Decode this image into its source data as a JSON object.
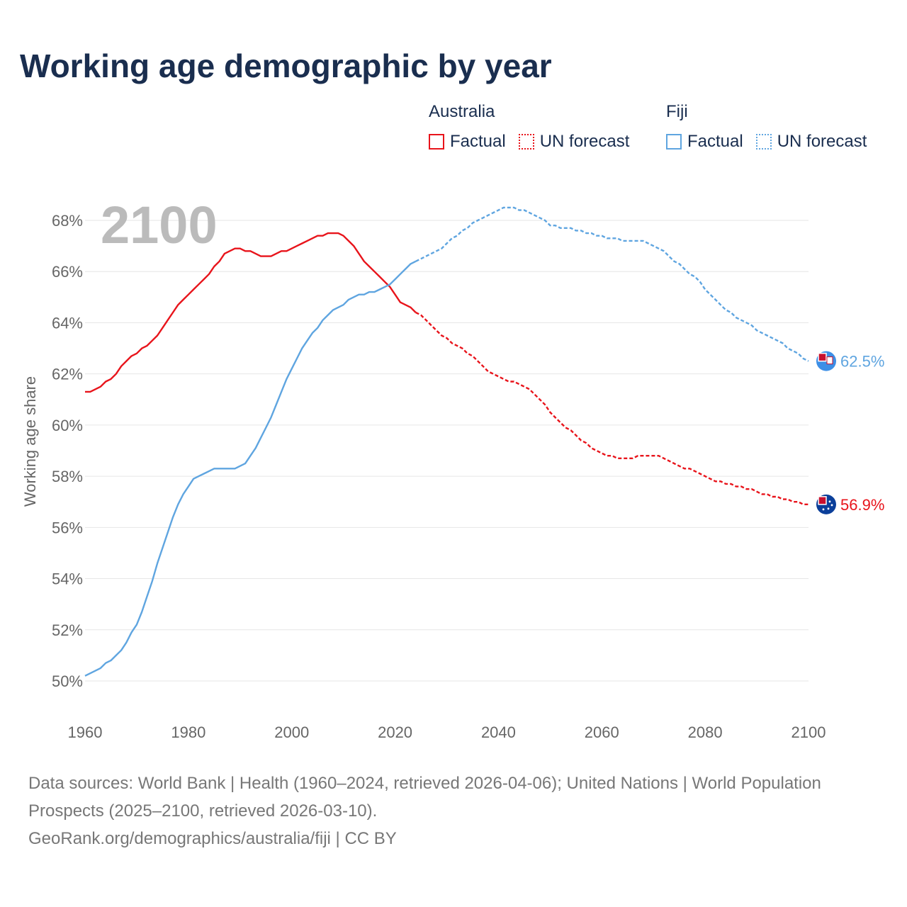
{
  "title": "Working age demographic by year",
  "legend": {
    "groups": [
      {
        "name": "Australia",
        "color": "#e8141b",
        "factual_label": "Factual",
        "forecast_label": "UN forecast"
      },
      {
        "name": "Fiji",
        "color": "#5fa5e0",
        "factual_label": "Factual",
        "forecast_label": "UN forecast"
      }
    ]
  },
  "footer": {
    "line1": "Data sources: World Bank | Health (1960–2024, retrieved 2026-04-06); United Nations | World Population Prospects (2025–2100, retrieved 2026-03-10).",
    "line2": "GeoRank.org/demographics/australia/fiji | CC BY"
  },
  "chart_data": {
    "type": "line",
    "year_label": "2100",
    "ylabel": "Working age share",
    "xlim": [
      1960,
      2100
    ],
    "ylim": [
      49,
      69
    ],
    "x_ticks": [
      1960,
      1980,
      2000,
      2020,
      2040,
      2060,
      2080,
      2100
    ],
    "x_tick_labels": [
      "1960",
      "1980",
      "2000",
      "2020",
      "2040",
      "2060",
      "2080",
      "2100"
    ],
    "y_ticks": [
      50,
      52,
      54,
      56,
      58,
      60,
      62,
      64,
      66,
      68
    ],
    "y_tick_labels": [
      "50%",
      "52%",
      "54%",
      "56%",
      "58%",
      "60%",
      "62%",
      "64%",
      "66%",
      "68%"
    ],
    "factual_end_year": 2024,
    "series": [
      {
        "name": "Australia",
        "color": "#e8141b",
        "end_label": "56.9%",
        "points": [
          [
            1960,
            61.3
          ],
          [
            1961,
            61.3
          ],
          [
            1962,
            61.4
          ],
          [
            1963,
            61.5
          ],
          [
            1964,
            61.7
          ],
          [
            1965,
            61.8
          ],
          [
            1966,
            62.0
          ],
          [
            1967,
            62.3
          ],
          [
            1968,
            62.5
          ],
          [
            1969,
            62.7
          ],
          [
            1970,
            62.8
          ],
          [
            1971,
            63.0
          ],
          [
            1972,
            63.1
          ],
          [
            1973,
            63.3
          ],
          [
            1974,
            63.5
          ],
          [
            1975,
            63.8
          ],
          [
            1976,
            64.1
          ],
          [
            1977,
            64.4
          ],
          [
            1978,
            64.7
          ],
          [
            1979,
            64.9
          ],
          [
            1980,
            65.1
          ],
          [
            1981,
            65.3
          ],
          [
            1982,
            65.5
          ],
          [
            1983,
            65.7
          ],
          [
            1984,
            65.9
          ],
          [
            1985,
            66.2
          ],
          [
            1986,
            66.4
          ],
          [
            1987,
            66.7
          ],
          [
            1988,
            66.8
          ],
          [
            1989,
            66.9
          ],
          [
            1990,
            66.9
          ],
          [
            1991,
            66.8
          ],
          [
            1992,
            66.8
          ],
          [
            1993,
            66.7
          ],
          [
            1994,
            66.6
          ],
          [
            1995,
            66.6
          ],
          [
            1996,
            66.6
          ],
          [
            1997,
            66.7
          ],
          [
            1998,
            66.8
          ],
          [
            1999,
            66.8
          ],
          [
            2000,
            66.9
          ],
          [
            2001,
            67.0
          ],
          [
            2002,
            67.1
          ],
          [
            2003,
            67.2
          ],
          [
            2004,
            67.3
          ],
          [
            2005,
            67.4
          ],
          [
            2006,
            67.4
          ],
          [
            2007,
            67.5
          ],
          [
            2008,
            67.5
          ],
          [
            2009,
            67.5
          ],
          [
            2010,
            67.4
          ],
          [
            2011,
            67.2
          ],
          [
            2012,
            67.0
          ],
          [
            2013,
            66.7
          ],
          [
            2014,
            66.4
          ],
          [
            2015,
            66.2
          ],
          [
            2016,
            66.0
          ],
          [
            2017,
            65.8
          ],
          [
            2018,
            65.6
          ],
          [
            2019,
            65.4
          ],
          [
            2020,
            65.1
          ],
          [
            2021,
            64.8
          ],
          [
            2022,
            64.7
          ],
          [
            2023,
            64.6
          ],
          [
            2024,
            64.4
          ],
          [
            2025,
            64.3
          ],
          [
            2026,
            64.1
          ],
          [
            2027,
            63.9
          ],
          [
            2028,
            63.7
          ],
          [
            2029,
            63.5
          ],
          [
            2030,
            63.4
          ],
          [
            2031,
            63.2
          ],
          [
            2032,
            63.1
          ],
          [
            2033,
            63.0
          ],
          [
            2034,
            62.8
          ],
          [
            2035,
            62.7
          ],
          [
            2036,
            62.5
          ],
          [
            2037,
            62.3
          ],
          [
            2038,
            62.1
          ],
          [
            2039,
            62.0
          ],
          [
            2040,
            61.9
          ],
          [
            2041,
            61.8
          ],
          [
            2042,
            61.7
          ],
          [
            2043,
            61.7
          ],
          [
            2044,
            61.6
          ],
          [
            2045,
            61.5
          ],
          [
            2046,
            61.4
          ],
          [
            2047,
            61.2
          ],
          [
            2048,
            61.0
          ],
          [
            2049,
            60.8
          ],
          [
            2050,
            60.5
          ],
          [
            2051,
            60.3
          ],
          [
            2052,
            60.1
          ],
          [
            2053,
            59.9
          ],
          [
            2054,
            59.8
          ],
          [
            2055,
            59.6
          ],
          [
            2056,
            59.4
          ],
          [
            2057,
            59.3
          ],
          [
            2058,
            59.1
          ],
          [
            2059,
            59.0
          ],
          [
            2060,
            58.9
          ],
          [
            2061,
            58.8
          ],
          [
            2062,
            58.8
          ],
          [
            2063,
            58.7
          ],
          [
            2064,
            58.7
          ],
          [
            2065,
            58.7
          ],
          [
            2066,
            58.7
          ],
          [
            2067,
            58.8
          ],
          [
            2068,
            58.8
          ],
          [
            2069,
            58.8
          ],
          [
            2070,
            58.8
          ],
          [
            2071,
            58.8
          ],
          [
            2072,
            58.7
          ],
          [
            2073,
            58.6
          ],
          [
            2074,
            58.5
          ],
          [
            2075,
            58.4
          ],
          [
            2076,
            58.3
          ],
          [
            2077,
            58.3
          ],
          [
            2078,
            58.2
          ],
          [
            2079,
            58.1
          ],
          [
            2080,
            58.0
          ],
          [
            2081,
            57.9
          ],
          [
            2082,
            57.8
          ],
          [
            2083,
            57.8
          ],
          [
            2084,
            57.7
          ],
          [
            2085,
            57.7
          ],
          [
            2086,
            57.6
          ],
          [
            2087,
            57.6
          ],
          [
            2088,
            57.5
          ],
          [
            2089,
            57.5
          ],
          [
            2090,
            57.4
          ],
          [
            2091,
            57.3
          ],
          [
            2092,
            57.3
          ],
          [
            2093,
            57.2
          ],
          [
            2094,
            57.2
          ],
          [
            2095,
            57.1
          ],
          [
            2096,
            57.1
          ],
          [
            2097,
            57.0
          ],
          [
            2098,
            57.0
          ],
          [
            2099,
            56.9
          ],
          [
            2100,
            56.9
          ]
        ]
      },
      {
        "name": "Fiji",
        "color": "#5fa5e0",
        "end_label": "62.5%",
        "points": [
          [
            1960,
            50.2
          ],
          [
            1961,
            50.3
          ],
          [
            1962,
            50.4
          ],
          [
            1963,
            50.5
          ],
          [
            1964,
            50.7
          ],
          [
            1965,
            50.8
          ],
          [
            1966,
            51.0
          ],
          [
            1967,
            51.2
          ],
          [
            1968,
            51.5
          ],
          [
            1969,
            51.9
          ],
          [
            1970,
            52.2
          ],
          [
            1971,
            52.7
          ],
          [
            1972,
            53.3
          ],
          [
            1973,
            53.9
          ],
          [
            1974,
            54.6
          ],
          [
            1975,
            55.2
          ],
          [
            1976,
            55.8
          ],
          [
            1977,
            56.4
          ],
          [
            1978,
            56.9
          ],
          [
            1979,
            57.3
          ],
          [
            1980,
            57.6
          ],
          [
            1981,
            57.9
          ],
          [
            1982,
            58.0
          ],
          [
            1983,
            58.1
          ],
          [
            1984,
            58.2
          ],
          [
            1985,
            58.3
          ],
          [
            1986,
            58.3
          ],
          [
            1987,
            58.3
          ],
          [
            1988,
            58.3
          ],
          [
            1989,
            58.3
          ],
          [
            1990,
            58.4
          ],
          [
            1991,
            58.5
          ],
          [
            1992,
            58.8
          ],
          [
            1993,
            59.1
          ],
          [
            1994,
            59.5
          ],
          [
            1995,
            59.9
          ],
          [
            1996,
            60.3
          ],
          [
            1997,
            60.8
          ],
          [
            1998,
            61.3
          ],
          [
            1999,
            61.8
          ],
          [
            2000,
            62.2
          ],
          [
            2001,
            62.6
          ],
          [
            2002,
            63.0
          ],
          [
            2003,
            63.3
          ],
          [
            2004,
            63.6
          ],
          [
            2005,
            63.8
          ],
          [
            2006,
            64.1
          ],
          [
            2007,
            64.3
          ],
          [
            2008,
            64.5
          ],
          [
            2009,
            64.6
          ],
          [
            2010,
            64.7
          ],
          [
            2011,
            64.9
          ],
          [
            2012,
            65.0
          ],
          [
            2013,
            65.1
          ],
          [
            2014,
            65.1
          ],
          [
            2015,
            65.2
          ],
          [
            2016,
            65.2
          ],
          [
            2017,
            65.3
          ],
          [
            2018,
            65.4
          ],
          [
            2019,
            65.5
          ],
          [
            2020,
            65.7
          ],
          [
            2021,
            65.9
          ],
          [
            2022,
            66.1
          ],
          [
            2023,
            66.3
          ],
          [
            2024,
            66.4
          ],
          [
            2025,
            66.5
          ],
          [
            2026,
            66.6
          ],
          [
            2027,
            66.7
          ],
          [
            2028,
            66.8
          ],
          [
            2029,
            66.9
          ],
          [
            2030,
            67.1
          ],
          [
            2031,
            67.3
          ],
          [
            2032,
            67.4
          ],
          [
            2033,
            67.6
          ],
          [
            2034,
            67.7
          ],
          [
            2035,
            67.9
          ],
          [
            2036,
            68.0
          ],
          [
            2037,
            68.1
          ],
          [
            2038,
            68.2
          ],
          [
            2039,
            68.3
          ],
          [
            2040,
            68.4
          ],
          [
            2041,
            68.5
          ],
          [
            2042,
            68.5
          ],
          [
            2043,
            68.5
          ],
          [
            2044,
            68.4
          ],
          [
            2045,
            68.4
          ],
          [
            2046,
            68.3
          ],
          [
            2047,
            68.2
          ],
          [
            2048,
            68.1
          ],
          [
            2049,
            68.0
          ],
          [
            2050,
            67.8
          ],
          [
            2051,
            67.8
          ],
          [
            2052,
            67.7
          ],
          [
            2053,
            67.7
          ],
          [
            2054,
            67.7
          ],
          [
            2055,
            67.6
          ],
          [
            2056,
            67.6
          ],
          [
            2057,
            67.5
          ],
          [
            2058,
            67.5
          ],
          [
            2059,
            67.4
          ],
          [
            2060,
            67.4
          ],
          [
            2061,
            67.3
          ],
          [
            2062,
            67.3
          ],
          [
            2063,
            67.3
          ],
          [
            2064,
            67.2
          ],
          [
            2065,
            67.2
          ],
          [
            2066,
            67.2
          ],
          [
            2067,
            67.2
          ],
          [
            2068,
            67.2
          ],
          [
            2069,
            67.1
          ],
          [
            2070,
            67.0
          ],
          [
            2071,
            66.9
          ],
          [
            2072,
            66.8
          ],
          [
            2073,
            66.6
          ],
          [
            2074,
            66.4
          ],
          [
            2075,
            66.3
          ],
          [
            2076,
            66.1
          ],
          [
            2077,
            65.9
          ],
          [
            2078,
            65.8
          ],
          [
            2079,
            65.6
          ],
          [
            2080,
            65.3
          ],
          [
            2081,
            65.1
          ],
          [
            2082,
            64.9
          ],
          [
            2083,
            64.7
          ],
          [
            2084,
            64.5
          ],
          [
            2085,
            64.4
          ],
          [
            2086,
            64.2
          ],
          [
            2087,
            64.1
          ],
          [
            2088,
            64.0
          ],
          [
            2089,
            63.9
          ],
          [
            2090,
            63.7
          ],
          [
            2091,
            63.6
          ],
          [
            2092,
            63.5
          ],
          [
            2093,
            63.4
          ],
          [
            2094,
            63.3
          ],
          [
            2095,
            63.2
          ],
          [
            2096,
            63.0
          ],
          [
            2097,
            62.9
          ],
          [
            2098,
            62.8
          ],
          [
            2099,
            62.6
          ],
          [
            2100,
            62.5
          ]
        ]
      }
    ]
  }
}
